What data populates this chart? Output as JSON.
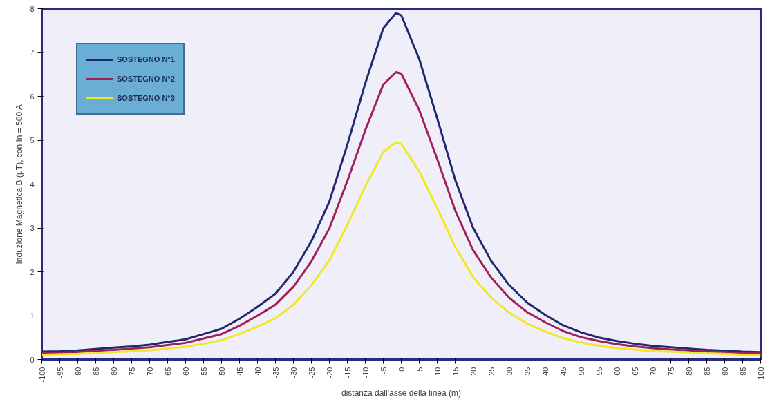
{
  "chart_data": {
    "type": "line",
    "xlabel": "distanza dall'asse della linea (m)",
    "ylabel": "Induzione Magnetica B (μT), con In = 500 A",
    "x": [
      -100,
      -95,
      -90,
      -85,
      -80,
      -75,
      -70,
      -65,
      -60,
      -55,
      -50,
      -45,
      -40,
      -35,
      -30,
      -25,
      -20,
      -15,
      -10,
      -5,
      -1.5,
      0,
      5,
      10,
      15,
      20,
      25,
      30,
      35,
      40,
      45,
      50,
      55,
      60,
      65,
      70,
      75,
      80,
      85,
      90,
      95,
      100
    ],
    "series": [
      {
        "name": "SOSTEGNO N°1",
        "color": "#1f2a6e",
        "values": [
          0.18,
          0.19,
          0.21,
          0.24,
          0.27,
          0.3,
          0.34,
          0.4,
          0.46,
          0.58,
          0.7,
          0.93,
          1.2,
          1.5,
          2.0,
          2.7,
          3.6,
          4.9,
          6.3,
          7.55,
          7.9,
          7.85,
          6.85,
          5.5,
          4.1,
          3.0,
          2.25,
          1.7,
          1.3,
          1.02,
          0.78,
          0.62,
          0.5,
          0.42,
          0.36,
          0.31,
          0.28,
          0.25,
          0.22,
          0.2,
          0.18,
          0.17
        ]
      },
      {
        "name": "SOSTEGNO N°2",
        "color": "#a0205a",
        "values": [
          0.15,
          0.16,
          0.17,
          0.2,
          0.22,
          0.25,
          0.28,
          0.33,
          0.38,
          0.48,
          0.58,
          0.77,
          1.0,
          1.25,
          1.66,
          2.24,
          2.99,
          4.07,
          5.23,
          6.27,
          6.55,
          6.52,
          5.69,
          4.57,
          3.4,
          2.49,
          1.87,
          1.41,
          1.08,
          0.85,
          0.65,
          0.51,
          0.42,
          0.35,
          0.3,
          0.26,
          0.23,
          0.21,
          0.18,
          0.17,
          0.15,
          0.14
        ]
      },
      {
        "name": "SOSTEGNO N°3",
        "color": "#f0e820",
        "values": [
          0.11,
          0.12,
          0.13,
          0.15,
          0.17,
          0.19,
          0.21,
          0.25,
          0.29,
          0.36,
          0.44,
          0.58,
          0.75,
          0.94,
          1.25,
          1.69,
          2.26,
          3.07,
          3.95,
          4.73,
          4.95,
          4.92,
          4.29,
          3.45,
          2.57,
          1.88,
          1.41,
          1.07,
          0.82,
          0.64,
          0.49,
          0.39,
          0.31,
          0.26,
          0.23,
          0.19,
          0.18,
          0.16,
          0.14,
          0.13,
          0.11,
          0.11
        ]
      }
    ],
    "xlim": [
      -100,
      100
    ],
    "xticks": [
      -100,
      -95,
      -90,
      -85,
      -80,
      -75,
      -70,
      -65,
      -60,
      -55,
      -50,
      -45,
      -40,
      -35,
      -30,
      -25,
      -20,
      -15,
      -10,
      -5,
      0,
      5,
      10,
      15,
      20,
      25,
      30,
      35,
      40,
      45,
      50,
      55,
      60,
      65,
      70,
      75,
      80,
      85,
      90,
      95,
      100
    ],
    "ylim": [
      0,
      8
    ],
    "yticks": [
      0,
      1,
      2,
      3,
      4,
      5,
      6,
      7,
      8
    ],
    "grid": false,
    "legend": "top left",
    "marker": "none",
    "line_style": "solid"
  }
}
